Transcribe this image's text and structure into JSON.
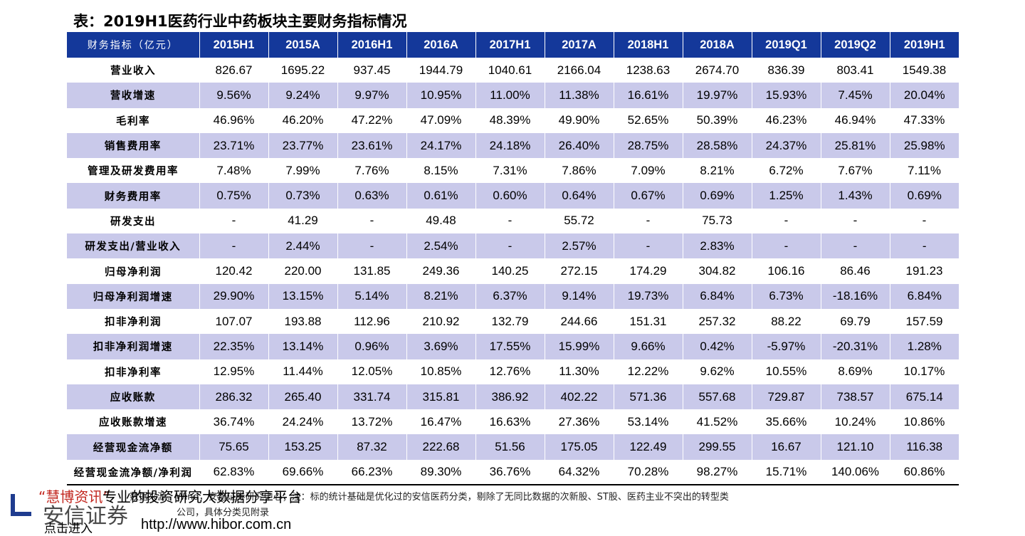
{
  "title": "表：2019H1医药行业中药板块主要财务指标情况",
  "table": {
    "header_label": "财务指标（亿元）",
    "periods": [
      "2015H1",
      "2015A",
      "2016H1",
      "2016A",
      "2017H1",
      "2017A",
      "2018H1",
      "2018A",
      "2019Q1",
      "2019Q2",
      "2019H1"
    ],
    "rows": [
      {
        "label": "营业收入",
        "values": [
          "826.67",
          "1695.22",
          "937.45",
          "1944.79",
          "1040.61",
          "2166.04",
          "1238.63",
          "2674.70",
          "836.39",
          "803.41",
          "1549.38"
        ]
      },
      {
        "label": "营收增速",
        "values": [
          "9.56%",
          "9.24%",
          "9.97%",
          "10.95%",
          "11.00%",
          "11.38%",
          "16.61%",
          "19.97%",
          "15.93%",
          "7.45%",
          "20.04%"
        ]
      },
      {
        "label": "毛利率",
        "values": [
          "46.96%",
          "46.20%",
          "47.22%",
          "47.09%",
          "48.39%",
          "49.90%",
          "52.65%",
          "50.39%",
          "46.23%",
          "46.94%",
          "47.33%"
        ]
      },
      {
        "label": "销售费用率",
        "values": [
          "23.71%",
          "23.77%",
          "23.61%",
          "24.17%",
          "24.18%",
          "26.40%",
          "28.75%",
          "28.58%",
          "24.37%",
          "25.81%",
          "25.98%"
        ]
      },
      {
        "label": "管理及研发费用率",
        "values": [
          "7.48%",
          "7.99%",
          "7.76%",
          "8.15%",
          "7.31%",
          "7.86%",
          "7.09%",
          "8.21%",
          "6.72%",
          "7.67%",
          "7.11%"
        ]
      },
      {
        "label": "财务费用率",
        "values": [
          "0.75%",
          "0.73%",
          "0.63%",
          "0.61%",
          "0.60%",
          "0.64%",
          "0.67%",
          "0.69%",
          "1.25%",
          "1.43%",
          "0.69%"
        ]
      },
      {
        "label": "研发支出",
        "values": [
          "-",
          "41.29",
          "-",
          "49.48",
          "-",
          "55.72",
          "-",
          "75.73",
          "-",
          "-",
          "-"
        ]
      },
      {
        "label": "研发支出/营业收入",
        "values": [
          "-",
          "2.44%",
          "-",
          "2.54%",
          "-",
          "2.57%",
          "-",
          "2.83%",
          "-",
          "-",
          "-"
        ]
      },
      {
        "label": "归母净利润",
        "values": [
          "120.42",
          "220.00",
          "131.85",
          "249.36",
          "140.25",
          "272.15",
          "174.29",
          "304.82",
          "106.16",
          "86.46",
          "191.23"
        ]
      },
      {
        "label": "归母净利润增速",
        "values": [
          "29.90%",
          "13.15%",
          "5.14%",
          "8.21%",
          "6.37%",
          "9.14%",
          "19.73%",
          "6.84%",
          "6.73%",
          "-18.16%",
          "6.84%"
        ]
      },
      {
        "label": "扣非净利润",
        "values": [
          "107.07",
          "193.88",
          "112.96",
          "210.92",
          "132.79",
          "244.66",
          "151.31",
          "257.32",
          "88.22",
          "69.79",
          "157.59"
        ]
      },
      {
        "label": "扣非净利润增速",
        "values": [
          "22.35%",
          "13.14%",
          "0.96%",
          "3.69%",
          "17.55%",
          "15.99%",
          "9.66%",
          "0.42%",
          "-5.97%",
          "-20.31%",
          "1.28%"
        ]
      },
      {
        "label": "扣非净利率",
        "values": [
          "12.95%",
          "11.44%",
          "12.05%",
          "10.85%",
          "12.76%",
          "11.30%",
          "12.22%",
          "9.62%",
          "10.55%",
          "8.69%",
          "10.17%"
        ]
      },
      {
        "label": "应收账款",
        "values": [
          "286.32",
          "265.40",
          "331.74",
          "315.81",
          "386.92",
          "402.22",
          "571.36",
          "557.68",
          "729.87",
          "738.57",
          "675.14"
        ]
      },
      {
        "label": "应收账款增速",
        "values": [
          "36.74%",
          "24.24%",
          "13.72%",
          "16.47%",
          "16.63%",
          "27.36%",
          "53.14%",
          "41.52%",
          "35.66%",
          "10.24%",
          "10.86%"
        ]
      },
      {
        "label": "经营现金流净额",
        "values": [
          "75.65",
          "153.25",
          "87.32",
          "222.68",
          "51.56",
          "175.05",
          "122.49",
          "299.55",
          "16.67",
          "121.10",
          "116.38"
        ]
      },
      {
        "label": "经营现金流净额/净利润",
        "values": [
          "62.83%",
          "69.66%",
          "66.23%",
          "89.30%",
          "36.76%",
          "64.32%",
          "70.28%",
          "98.27%",
          "15.71%",
          "140.06%",
          "60.86%"
        ]
      }
    ]
  },
  "note": {
    "line1": "数据来源：Wind，安信证券研究中心；注：标的统计基础是优化过的安信医药分类，剔除了无同比数据的次新股、ST股、医药主业不突出的转型类",
    "line2": "公司，具体分类见附录"
  },
  "watermark": {
    "brand": "“慧博资讯”",
    "slogan": "专业的投资研究大数据分享平台",
    "agency": "安信证券",
    "click": "点击进入",
    "url": "http://www.hibor.com.cn"
  },
  "colors": {
    "header_bg": "#14389a",
    "stripe_bg": "#c9c9ea",
    "brand_red": "#c2271f"
  }
}
